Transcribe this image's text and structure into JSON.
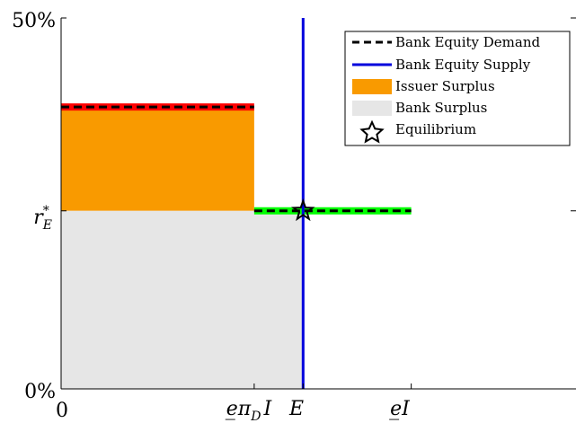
{
  "chart_data": {
    "type": "area",
    "title": "",
    "xlabel": "",
    "ylabel": "",
    "xlim": [
      0,
      1
    ],
    "ylim": [
      0,
      50
    ],
    "x_ticks": [
      {
        "value": 0,
        "label": "0"
      },
      {
        "value": 0.375,
        "label": "e̲π_D I"
      },
      {
        "value": 0.47,
        "label": "E"
      },
      {
        "value": 0.68,
        "label": "e̲I"
      }
    ],
    "y_ticks": [
      {
        "value": 0,
        "label": "0%"
      },
      {
        "value": 24,
        "label": "r*_E"
      },
      {
        "value": 50,
        "label": "50%"
      }
    ],
    "tick_labels_rich": {
      "x_epid": {
        "base": "e̲π",
        "sub": "D",
        "tail": "I"
      },
      "x_E": {
        "base": "E"
      },
      "x_eI": {
        "base": "e̲I"
      },
      "y_rE": {
        "base": "r",
        "sup": "*",
        "sub": "E"
      }
    },
    "series": [
      {
        "name": "Bank Equity Demand",
        "style": "dashed",
        "color": "#000000",
        "segments": [
          [
            [
              0,
              38
            ],
            [
              0.375,
              38
            ]
          ],
          [
            [
              0.375,
              24
            ],
            [
              0.68,
              24
            ]
          ]
        ]
      },
      {
        "name": "Bank Equity Supply",
        "style": "solid",
        "color": "#0000dd",
        "x": 0.47,
        "y_range": [
          0,
          50
        ]
      },
      {
        "name": "Issuer Surplus",
        "color": "#f99a00",
        "x_range": [
          0,
          0.375
        ],
        "y_range": [
          24,
          38
        ]
      },
      {
        "name": "Bank Surplus",
        "color": "#e6e6e6",
        "x_range": [
          0,
          0.47
        ],
        "y_range": [
          0,
          24
        ]
      }
    ],
    "highlights": [
      {
        "color": "#ff0000",
        "x_range": [
          0,
          0.375
        ],
        "y": 38
      },
      {
        "color": "#00ff00",
        "x_range": [
          0.375,
          0.68
        ],
        "y": 24
      }
    ],
    "equilibrium": {
      "name": "Equilibrium",
      "x": 0.47,
      "y": 24
    },
    "legend": {
      "position": "top-right",
      "entries": [
        {
          "label": "Bank Equity Demand",
          "kind": "dashed-line",
          "color": "#000000"
        },
        {
          "label": "Bank Equity Supply",
          "kind": "line",
          "color": "#0000dd"
        },
        {
          "label": "Issuer Surplus",
          "kind": "patch",
          "color": "#f99a00"
        },
        {
          "label": "Bank Surplus",
          "kind": "patch",
          "color": "#e6e6e6"
        },
        {
          "label": "Equilibrium",
          "kind": "star",
          "color": "#000000"
        }
      ]
    },
    "grid": false
  }
}
